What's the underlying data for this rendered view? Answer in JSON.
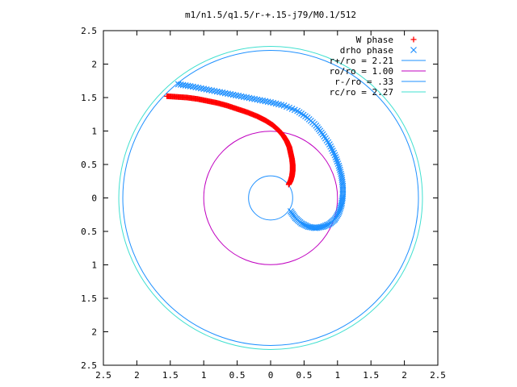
{
  "chart_data": {
    "type": "scatter",
    "title": "m1/n1.5/q1.5/r-+.15-j79/M0.1/512",
    "xlabel": "",
    "ylabel": "",
    "xlim": [
      -2.5,
      2.5
    ],
    "ylim": [
      -2.5,
      2.5
    ],
    "x_ticks": [
      -2.5,
      -2,
      -1.5,
      -1,
      -0.5,
      0,
      0.5,
      1,
      1.5,
      2,
      2.5
    ],
    "y_ticks": [
      -2.5,
      -2,
      -1.5,
      -1,
      -0.5,
      0,
      0.5,
      1,
      1.5,
      2,
      2.5
    ],
    "x_tick_labels": [
      "2.5",
      "2",
      "1.5",
      "1",
      "0.5",
      "0",
      "0.5",
      "1",
      "1.5",
      "2",
      "2.5"
    ],
    "y_tick_labels": [
      "2.5",
      "2",
      "1.5",
      "1",
      "0.5",
      "0",
      "0.5",
      "1",
      "1.5",
      "2",
      "2.5"
    ],
    "grid": false,
    "legend_position": "top-right",
    "series": [
      {
        "name": "W phase",
        "marker": "+",
        "color": "#ff0000",
        "points": [
          [
            -1.55,
            1.52
          ],
          [
            -1.4,
            1.51
          ],
          [
            -1.25,
            1.5
          ],
          [
            -1.1,
            1.48
          ],
          [
            -0.95,
            1.45
          ],
          [
            -0.8,
            1.42
          ],
          [
            -0.65,
            1.38
          ],
          [
            -0.5,
            1.33
          ],
          [
            -0.35,
            1.28
          ],
          [
            -0.2,
            1.22
          ],
          [
            -0.08,
            1.16
          ],
          [
            0.03,
            1.09
          ],
          [
            0.12,
            1.01
          ],
          [
            0.19,
            0.93
          ],
          [
            0.24,
            0.85
          ],
          [
            0.28,
            0.76
          ],
          [
            0.3,
            0.67
          ],
          [
            0.32,
            0.58
          ],
          [
            0.33,
            0.49
          ],
          [
            0.33,
            0.41
          ],
          [
            0.32,
            0.33
          ],
          [
            0.3,
            0.26
          ],
          [
            0.27,
            0.2
          ]
        ]
      },
      {
        "name": "drho phase",
        "marker": "x",
        "color": "#1e90ff",
        "points": [
          [
            -1.38,
            1.7
          ],
          [
            -1.2,
            1.67
          ],
          [
            -1.0,
            1.63
          ],
          [
            -0.8,
            1.59
          ],
          [
            -0.6,
            1.55
          ],
          [
            -0.4,
            1.51
          ],
          [
            -0.2,
            1.47
          ],
          [
            0.0,
            1.43
          ],
          [
            0.2,
            1.38
          ],
          [
            0.4,
            1.3
          ],
          [
            0.55,
            1.2
          ],
          [
            0.68,
            1.08
          ],
          [
            0.78,
            0.95
          ],
          [
            0.88,
            0.8
          ],
          [
            0.96,
            0.64
          ],
          [
            1.02,
            0.48
          ],
          [
            1.06,
            0.33
          ],
          [
            1.08,
            0.18
          ],
          [
            1.08,
            0.03
          ],
          [
            1.06,
            -0.1
          ],
          [
            1.02,
            -0.22
          ],
          [
            0.96,
            -0.32
          ],
          [
            0.88,
            -0.39
          ],
          [
            0.78,
            -0.43
          ],
          [
            0.67,
            -0.45
          ],
          [
            0.56,
            -0.43
          ],
          [
            0.46,
            -0.38
          ],
          [
            0.37,
            -0.3
          ],
          [
            0.3,
            -0.2
          ]
        ]
      },
      {
        "name": "r+/ro = 2.21",
        "type": "circle",
        "radius": 2.21,
        "color": "#1e90ff"
      },
      {
        "name": "ro/ro = 1.00",
        "type": "circle",
        "radius": 1.0,
        "color": "#c000c0"
      },
      {
        "name": "r-/ro = .33",
        "type": "circle",
        "radius": 0.33,
        "color": "#1e90ff"
      },
      {
        "name": "rc/ro = 2.27",
        "type": "circle",
        "radius": 2.27,
        "color": "#40e0d0"
      }
    ]
  }
}
